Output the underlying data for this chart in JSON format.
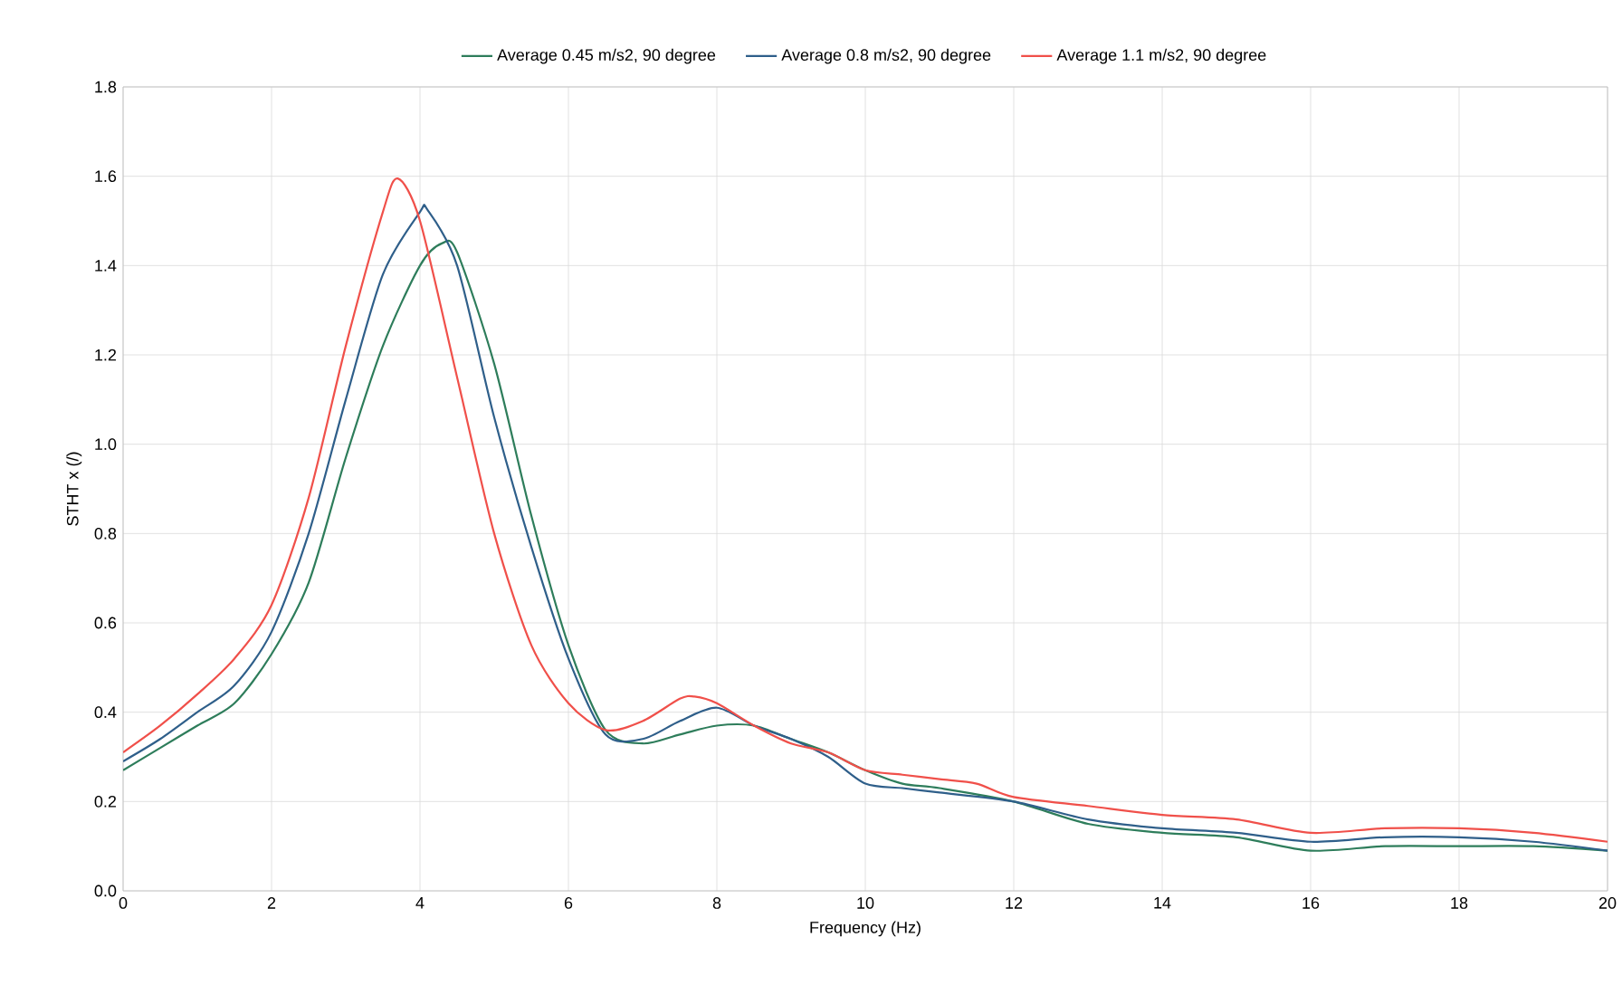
{
  "chart_data": {
    "type": "line",
    "xlabel": "Frequency (Hz)",
    "ylabel": "STHT x (/)",
    "xlim": [
      0,
      20
    ],
    "ylim": [
      0,
      1.8
    ],
    "xticks": [
      0,
      2,
      4,
      6,
      8,
      10,
      12,
      14,
      16,
      18,
      20
    ],
    "yticks": [
      {
        "value": 0,
        "label": "0.0"
      },
      {
        "value": 0.2,
        "label": "0.2"
      },
      {
        "value": 0.4,
        "label": "0.4"
      },
      {
        "value": 0.6,
        "label": "0.6"
      },
      {
        "value": 0.8,
        "label": "0.8"
      },
      {
        "value": 1.0,
        "label": "1.0"
      },
      {
        "value": 1.2,
        "label": "1.2"
      },
      {
        "value": 1.4,
        "label": "1.4"
      },
      {
        "value": 1.6,
        "label": "1.6"
      },
      {
        "value": 1.8,
        "label": "1.8"
      }
    ],
    "grid": true,
    "legend": "top",
    "marker": "none",
    "line_style": "solid",
    "series": [
      {
        "name": "Average 0.45 m/s2, 90 degree",
        "color": "#2e7d5b",
        "x": [
          0,
          0.5,
          1,
          1.5,
          2,
          2.5,
          3,
          3.5,
          4,
          4.3,
          4.5,
          5,
          5.5,
          6,
          6.5,
          7,
          7.5,
          8,
          8.5,
          9,
          9.5,
          10,
          10.5,
          11,
          12,
          13,
          14,
          15,
          16,
          17,
          18,
          19,
          20
        ],
        "values": [
          0.27,
          0.32,
          0.37,
          0.42,
          0.53,
          0.69,
          0.97,
          1.22,
          1.4,
          1.45,
          1.43,
          1.18,
          0.84,
          0.55,
          0.36,
          0.33,
          0.35,
          0.37,
          0.37,
          0.34,
          0.31,
          0.27,
          0.24,
          0.23,
          0.2,
          0.15,
          0.13,
          0.12,
          0.09,
          0.1,
          0.1,
          0.1,
          0.09
        ]
      },
      {
        "name": "Average 0.8 m/s2, 90 degree",
        "color": "#2f5f8a",
        "x": [
          0,
          0.5,
          1,
          1.5,
          2,
          2.5,
          3,
          3.5,
          4,
          4.1,
          4.5,
          5,
          5.5,
          6,
          6.5,
          7,
          7.5,
          8,
          8.5,
          9,
          9.5,
          10,
          10.5,
          11,
          12,
          13,
          14,
          15,
          16,
          17,
          18,
          19,
          20
        ],
        "values": [
          0.29,
          0.34,
          0.4,
          0.46,
          0.58,
          0.8,
          1.1,
          1.38,
          1.52,
          1.525,
          1.4,
          1.06,
          0.77,
          0.52,
          0.35,
          0.34,
          0.38,
          0.41,
          0.37,
          0.34,
          0.3,
          0.24,
          0.23,
          0.22,
          0.2,
          0.16,
          0.14,
          0.13,
          0.11,
          0.12,
          0.12,
          0.11,
          0.09
        ]
      },
      {
        "name": "Average 1.1 m/s2, 90 degree",
        "color": "#f0504a",
        "x": [
          0,
          0.5,
          1,
          1.5,
          2,
          2.5,
          3,
          3.5,
          3.7,
          4,
          4.5,
          5,
          5.5,
          6,
          6.5,
          7,
          7.5,
          7.7,
          8,
          8.5,
          9,
          9.5,
          10,
          10.5,
          11,
          11.5,
          12,
          13,
          14,
          15,
          16,
          17,
          18,
          19,
          20
        ],
        "values": [
          0.31,
          0.37,
          0.44,
          0.52,
          0.64,
          0.88,
          1.22,
          1.52,
          1.595,
          1.5,
          1.15,
          0.8,
          0.55,
          0.42,
          0.36,
          0.38,
          0.43,
          0.435,
          0.42,
          0.37,
          0.33,
          0.31,
          0.27,
          0.26,
          0.25,
          0.24,
          0.21,
          0.19,
          0.17,
          0.16,
          0.13,
          0.14,
          0.14,
          0.13,
          0.11
        ]
      }
    ]
  }
}
